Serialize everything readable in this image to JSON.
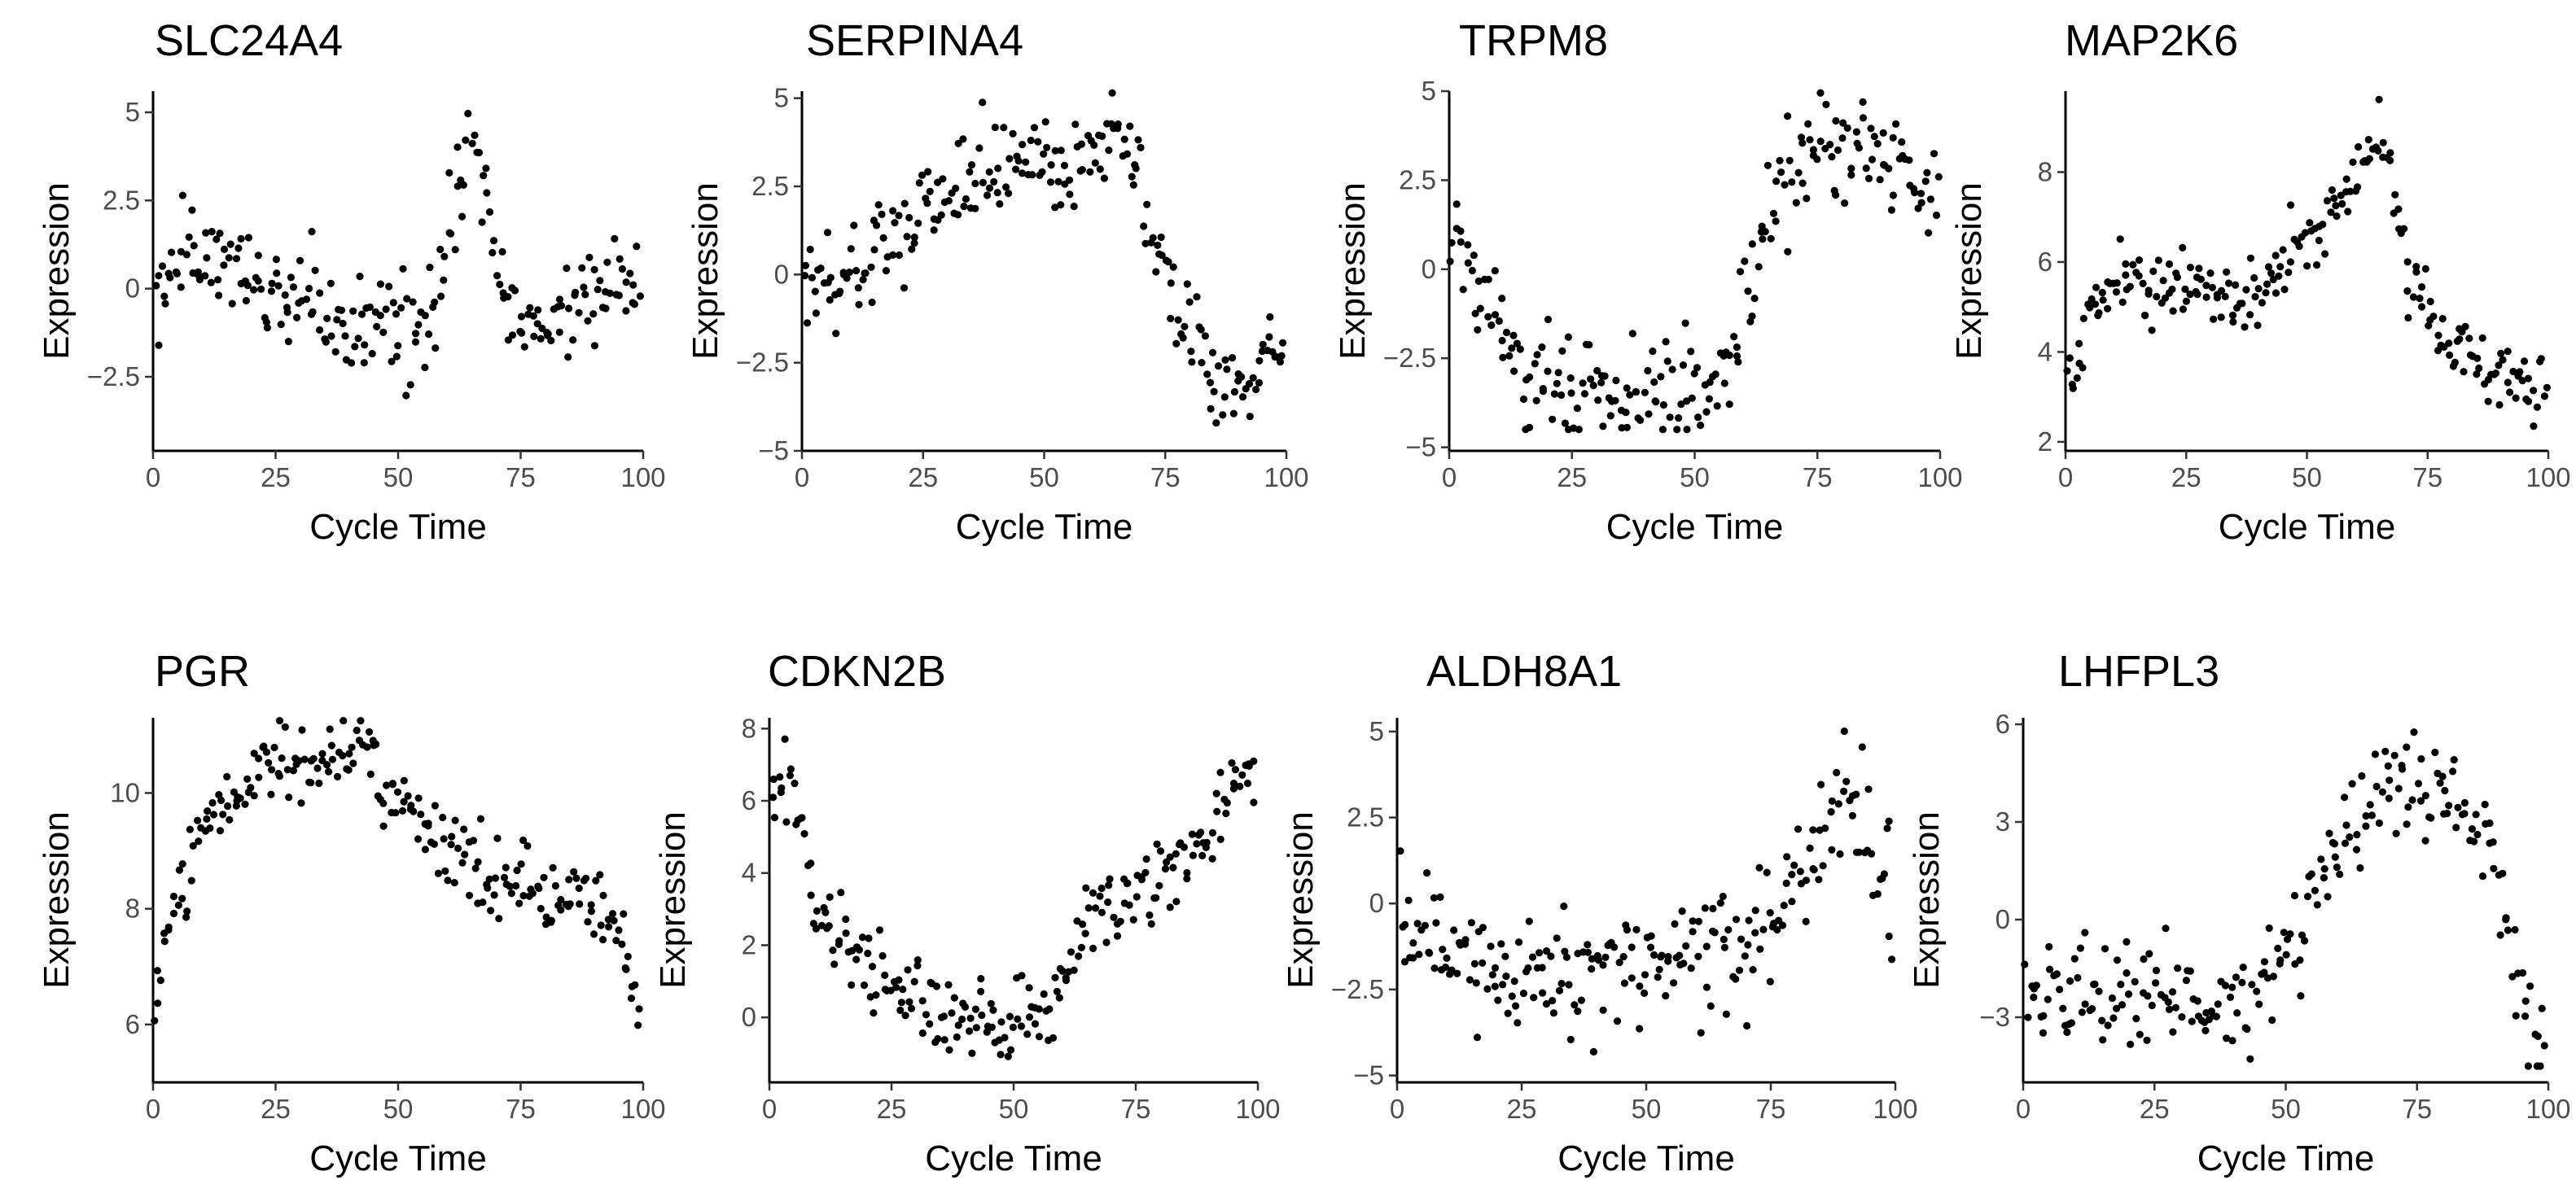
{
  "figure": {
    "point_color": "#000000",
    "background": "#ffffff"
  },
  "chart_data": [
    {
      "type": "scatter",
      "title": "SLC24A4",
      "xlabel": "Cycle Time",
      "ylabel": "Expression",
      "xlim": [
        0,
        100
      ],
      "ylim": [
        -4.6,
        5.6
      ],
      "xticks": [
        0,
        25,
        50,
        75,
        100
      ],
      "xtick_labels": [
        "0",
        "25",
        "50",
        "75",
        "100"
      ],
      "yticks": [
        -2.5,
        0,
        2.5,
        5
      ],
      "ytick_labels": [
        "−2.5",
        "0",
        "2.5",
        "5"
      ],
      "curve": [
        [
          0,
          0.2
        ],
        [
          10,
          1.0
        ],
        [
          25,
          -0.3
        ],
        [
          40,
          -1.0
        ],
        [
          52,
          -0.9
        ],
        [
          55,
          -1.4
        ],
        [
          58,
          0.0
        ],
        [
          63,
          2.8
        ],
        [
          65,
          5.0
        ],
        [
          67,
          4.0
        ],
        [
          70,
          0.0
        ],
        [
          72,
          -0.6
        ],
        [
          80,
          -1.0
        ],
        [
          90,
          0.2
        ],
        [
          100,
          0.6
        ]
      ],
      "noise": 0.75,
      "low_floor": null
    },
    {
      "type": "scatter",
      "title": "SERPINA4",
      "xlabel": "Cycle Time",
      "ylabel": "Expression",
      "xlim": [
        0,
        100
      ],
      "ylim": [
        -5,
        5.2
      ],
      "xticks": [
        0,
        25,
        50,
        75,
        100
      ],
      "xtick_labels": [
        "0",
        "25",
        "50",
        "75",
        "100"
      ],
      "yticks": [
        -5,
        -2.5,
        0,
        2.5,
        5
      ],
      "ytick_labels": [
        "−5",
        "−2.5",
        "0",
        "2.5",
        "5"
      ],
      "curve": [
        [
          0,
          -0.5
        ],
        [
          10,
          0.0
        ],
        [
          25,
          2.0
        ],
        [
          40,
          2.8
        ],
        [
          55,
          3.3
        ],
        [
          68,
          4.0
        ],
        [
          72,
          1.5
        ],
        [
          78,
          -1.0
        ],
        [
          85,
          -2.7
        ],
        [
          92,
          -3.3
        ],
        [
          100,
          -1.5
        ]
      ],
      "noise": 0.7,
      "low_floor": -4.5
    },
    {
      "type": "scatter",
      "title": "TRPM8",
      "xlabel": "Cycle Time",
      "ylabel": "Expression",
      "xlim": [
        0,
        100
      ],
      "ylim": [
        -5.1,
        5.0
      ],
      "xticks": [
        0,
        25,
        50,
        75,
        100
      ],
      "xtick_labels": [
        "0",
        "25",
        "50",
        "75",
        "100"
      ],
      "yticks": [
        -5,
        -2.5,
        0,
        2.5,
        5
      ],
      "ytick_labels": [
        "−5",
        "−2.5",
        "0",
        "2.5",
        "5"
      ],
      "curve": [
        [
          0,
          1.0
        ],
        [
          8,
          -1.0
        ],
        [
          15,
          -3.0
        ],
        [
          30,
          -3.5
        ],
        [
          45,
          -3.5
        ],
        [
          55,
          -3.2
        ],
        [
          60,
          -1.0
        ],
        [
          65,
          1.5
        ],
        [
          70,
          3.0
        ],
        [
          85,
          3.5
        ],
        [
          100,
          2.0
        ]
      ],
      "noise": 0.7,
      "low_floor": -4.5
    },
    {
      "type": "scatter",
      "title": "MAP2K6",
      "xlabel": "Cycle Time",
      "ylabel": "Expression",
      "xlim": [
        0,
        100
      ],
      "ylim": [
        1.8,
        9.8
      ],
      "xticks": [
        0,
        25,
        50,
        75,
        100
      ],
      "xtick_labels": [
        "0",
        "25",
        "50",
        "75",
        "100"
      ],
      "yticks": [
        2,
        4,
        6,
        8
      ],
      "ytick_labels": [
        "2",
        "4",
        "6",
        "8"
      ],
      "curve": [
        [
          0,
          3.0
        ],
        [
          5,
          4.8
        ],
        [
          10,
          5.6
        ],
        [
          25,
          5.4
        ],
        [
          35,
          5.1
        ],
        [
          45,
          5.8
        ],
        [
          55,
          7.0
        ],
        [
          62,
          8.2
        ],
        [
          66,
          8.9
        ],
        [
          70,
          6.2
        ],
        [
          75,
          4.8
        ],
        [
          85,
          3.7
        ],
        [
          100,
          3.0
        ]
      ],
      "noise": 0.4,
      "low_floor": null
    },
    {
      "type": "scatter",
      "title": "PGR",
      "xlabel": "Cycle Time",
      "ylabel": "Expression",
      "xlim": [
        0,
        100
      ],
      "ylim": [
        5.0,
        11.3
      ],
      "xticks": [
        0,
        25,
        50,
        75,
        100
      ],
      "xtick_labels": [
        "0",
        "25",
        "50",
        "75",
        "100"
      ],
      "yticks": [
        6,
        8,
        10
      ],
      "ytick_labels": [
        "6",
        "8",
        "10"
      ],
      "curve": [
        [
          0,
          6.2
        ],
        [
          5,
          8.3
        ],
        [
          10,
          9.6
        ],
        [
          20,
          10.3
        ],
        [
          30,
          10.6
        ],
        [
          40,
          10.8
        ],
        [
          50,
          10.0
        ],
        [
          60,
          9.0
        ],
        [
          70,
          8.5
        ],
        [
          80,
          8.3
        ],
        [
          90,
          8.0
        ],
        [
          97,
          7.5
        ],
        [
          100,
          5.5
        ]
      ],
      "noise": 0.35,
      "low_floor": null
    },
    {
      "type": "scatter",
      "title": "CDKN2B",
      "xlabel": "Cycle Time",
      "ylabel": "Expression",
      "xlim": [
        0,
        100
      ],
      "ylim": [
        -1.8,
        8.3
      ],
      "xticks": [
        0,
        25,
        50,
        75,
        100
      ],
      "xtick_labels": [
        "0",
        "25",
        "50",
        "75",
        "100"
      ],
      "yticks": [
        0,
        2,
        4,
        6,
        8
      ],
      "ytick_labels": [
        "0",
        "2",
        "4",
        "6",
        "8"
      ],
      "curve": [
        [
          0,
          6.8
        ],
        [
          5,
          5.8
        ],
        [
          10,
          3.0
        ],
        [
          20,
          1.2
        ],
        [
          30,
          0.5
        ],
        [
          40,
          0.0
        ],
        [
          50,
          0.0
        ],
        [
          55,
          0.2
        ],
        [
          60,
          1.0
        ],
        [
          65,
          2.5
        ],
        [
          75,
          3.5
        ],
        [
          85,
          4.2
        ],
        [
          95,
          6.3
        ],
        [
          100,
          7.0
        ]
      ],
      "noise": 0.6,
      "low_floor": null
    },
    {
      "type": "scatter",
      "title": "ALDH8A1",
      "xlabel": "Cycle Time",
      "ylabel": "Expression",
      "xlim": [
        0,
        100
      ],
      "ylim": [
        -5.2,
        5.4
      ],
      "xticks": [
        0,
        25,
        50,
        75,
        100
      ],
      "xtick_labels": [
        "0",
        "25",
        "50",
        "75",
        "100"
      ],
      "yticks": [
        -5,
        -2.5,
        0,
        2.5,
        5
      ],
      "ytick_labels": [
        "−5",
        "−2.5",
        "0",
        "2.5",
        "5"
      ],
      "curve": [
        [
          0,
          -0.5
        ],
        [
          10,
          -1.5
        ],
        [
          30,
          -2.3
        ],
        [
          45,
          -2.0
        ],
        [
          60,
          -1.5
        ],
        [
          70,
          -1.0
        ],
        [
          78,
          0.0
        ],
        [
          85,
          1.8
        ],
        [
          90,
          3.5
        ],
        [
          95,
          2.0
        ],
        [
          100,
          0.5
        ]
      ],
      "noise": 0.9,
      "low_floor": -4.5
    },
    {
      "type": "scatter",
      "title": "LHFPL3",
      "xlabel": "Cycle Time",
      "ylabel": "Expression",
      "xlim": [
        0,
        100
      ],
      "ylim": [
        -5.0,
        6.2
      ],
      "xticks": [
        0,
        25,
        50,
        75,
        100
      ],
      "xtick_labels": [
        "0",
        "25",
        "50",
        "75",
        "100"
      ],
      "yticks": [
        -3,
        0,
        3,
        6
      ],
      "ytick_labels": [
        "−3",
        "0",
        "3",
        "6"
      ],
      "curve": [
        [
          0,
          -2.5
        ],
        [
          10,
          -2.0
        ],
        [
          25,
          -2.3
        ],
        [
          40,
          -2.5
        ],
        [
          48,
          -2.0
        ],
        [
          52,
          -0.5
        ],
        [
          57,
          1.5
        ],
        [
          62,
          3.0
        ],
        [
          68,
          4.2
        ],
        [
          80,
          3.8
        ],
        [
          88,
          2.5
        ],
        [
          92,
          0.0
        ],
        [
          95,
          -2.5
        ],
        [
          100,
          -4.0
        ]
      ],
      "noise": 0.8,
      "low_floor": -4.5
    }
  ]
}
